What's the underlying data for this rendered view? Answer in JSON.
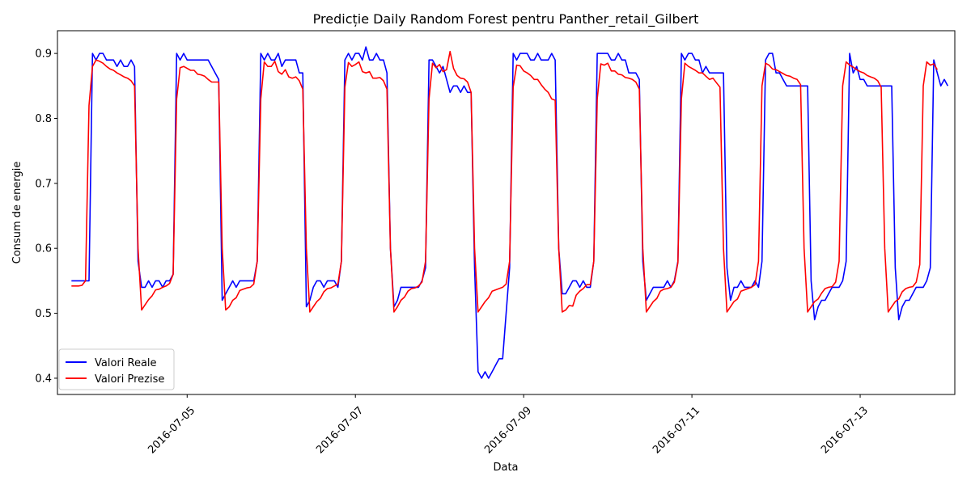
{
  "chart_data": {
    "type": "line",
    "title": "Predicție Daily Random Forest pentru Panther_retail_Gilbert",
    "xlabel": "Data",
    "ylabel": "Consum de energie",
    "x_start": "2016-07-03T15:00",
    "x_step_hours": 1,
    "x_ticks": [
      "2016-07-05",
      "2016-07-07",
      "2016-07-09",
      "2016-07-11",
      "2016-07-13"
    ],
    "xlim": [
      "2016-07-03T11:00",
      "2016-07-14T03:00"
    ],
    "ylim": [
      0.375,
      0.935
    ],
    "y_ticks": [
      0.4,
      0.5,
      0.6,
      0.7,
      0.8,
      0.9
    ],
    "grid": false,
    "legend_position": "lower-left",
    "series": [
      {
        "name": "Valori Reale",
        "color": "#0000ff",
        "values": [
          0.55,
          0.55,
          0.55,
          0.55,
          0.55,
          0.55,
          0.9,
          0.89,
          0.9,
          0.9,
          0.89,
          0.89,
          0.89,
          0.88,
          0.89,
          0.88,
          0.88,
          0.89,
          0.88,
          0.58,
          0.54,
          0.54,
          0.55,
          0.54,
          0.55,
          0.55,
          0.54,
          0.55,
          0.55,
          0.56,
          0.9,
          0.89,
          0.9,
          0.89,
          0.89,
          0.89,
          0.89,
          0.89,
          0.89,
          0.89,
          0.88,
          0.87,
          0.86,
          0.52,
          0.53,
          0.54,
          0.55,
          0.54,
          0.55,
          0.55,
          0.55,
          0.55,
          0.55,
          0.58,
          0.9,
          0.89,
          0.9,
          0.89,
          0.89,
          0.9,
          0.88,
          0.89,
          0.89,
          0.89,
          0.89,
          0.87,
          0.87,
          0.51,
          0.52,
          0.54,
          0.55,
          0.55,
          0.54,
          0.55,
          0.55,
          0.55,
          0.54,
          0.58,
          0.89,
          0.9,
          0.89,
          0.9,
          0.9,
          0.89,
          0.91,
          0.89,
          0.89,
          0.9,
          0.89,
          0.89,
          0.87,
          0.6,
          0.51,
          0.52,
          0.54,
          0.54,
          0.54,
          0.54,
          0.54,
          0.54,
          0.55,
          0.57,
          0.89,
          0.89,
          0.88,
          0.87,
          0.88,
          0.86,
          0.84,
          0.85,
          0.85,
          0.84,
          0.85,
          0.84,
          0.84,
          0.57,
          0.41,
          0.4,
          0.41,
          0.4,
          0.41,
          0.42,
          0.43,
          0.43,
          0.5,
          0.57,
          0.9,
          0.89,
          0.9,
          0.9,
          0.9,
          0.89,
          0.89,
          0.9,
          0.89,
          0.89,
          0.89,
          0.9,
          0.89,
          0.6,
          0.53,
          0.53,
          0.54,
          0.55,
          0.55,
          0.54,
          0.55,
          0.54,
          0.54,
          0.58,
          0.9,
          0.9,
          0.9,
          0.9,
          0.89,
          0.89,
          0.9,
          0.89,
          0.89,
          0.87,
          0.87,
          0.87,
          0.86,
          0.58,
          0.52,
          0.53,
          0.54,
          0.54,
          0.54,
          0.54,
          0.55,
          0.54,
          0.55,
          0.58,
          0.9,
          0.89,
          0.9,
          0.9,
          0.89,
          0.89,
          0.87,
          0.88,
          0.87,
          0.87,
          0.87,
          0.87,
          0.87,
          0.57,
          0.52,
          0.54,
          0.54,
          0.55,
          0.54,
          0.54,
          0.54,
          0.55,
          0.54,
          0.58,
          0.89,
          0.9,
          0.9,
          0.87,
          0.87,
          0.86,
          0.85,
          0.85,
          0.85,
          0.85,
          0.85,
          0.85,
          0.85,
          0.55,
          0.49,
          0.51,
          0.52,
          0.52,
          0.53,
          0.54,
          0.54,
          0.54,
          0.55,
          0.58,
          0.9,
          0.87,
          0.88,
          0.86,
          0.86,
          0.85,
          0.85,
          0.85,
          0.85,
          0.85,
          0.85,
          0.85,
          0.85,
          0.57,
          0.49,
          0.51,
          0.52,
          0.52,
          0.53,
          0.54,
          0.54,
          0.54,
          0.55,
          0.57,
          0.89,
          0.87,
          0.85,
          0.86,
          0.85
        ]
      },
      {
        "name": "Valori Prezise",
        "color": "#ff0000",
        "values": [
          0.542,
          0.542,
          0.542,
          0.543,
          0.55,
          0.82,
          0.88,
          0.89,
          0.888,
          0.885,
          0.88,
          0.876,
          0.874,
          0.87,
          0.867,
          0.864,
          0.862,
          0.858,
          0.85,
          0.6,
          0.505,
          0.513,
          0.521,
          0.527,
          0.536,
          0.537,
          0.54,
          0.542,
          0.546,
          0.56,
          0.83,
          0.878,
          0.88,
          0.877,
          0.874,
          0.874,
          0.868,
          0.867,
          0.865,
          0.86,
          0.856,
          0.856,
          0.856,
          0.6,
          0.505,
          0.51,
          0.52,
          0.524,
          0.535,
          0.537,
          0.539,
          0.54,
          0.545,
          0.58,
          0.83,
          0.887,
          0.88,
          0.88,
          0.888,
          0.872,
          0.868,
          0.875,
          0.864,
          0.862,
          0.864,
          0.858,
          0.845,
          0.6,
          0.502,
          0.51,
          0.518,
          0.523,
          0.533,
          0.538,
          0.539,
          0.542,
          0.545,
          0.58,
          0.848,
          0.886,
          0.88,
          0.883,
          0.887,
          0.872,
          0.87,
          0.872,
          0.862,
          0.862,
          0.863,
          0.858,
          0.845,
          0.6,
          0.502,
          0.51,
          0.52,
          0.525,
          0.534,
          0.538,
          0.539,
          0.542,
          0.548,
          0.58,
          0.83,
          0.885,
          0.878,
          0.883,
          0.872,
          0.875,
          0.903,
          0.877,
          0.866,
          0.862,
          0.861,
          0.856,
          0.84,
          0.6,
          0.502,
          0.51,
          0.518,
          0.524,
          0.534,
          0.536,
          0.538,
          0.54,
          0.545,
          0.58,
          0.848,
          0.882,
          0.881,
          0.873,
          0.87,
          0.866,
          0.86,
          0.86,
          0.852,
          0.845,
          0.84,
          0.83,
          0.828,
          0.6,
          0.502,
          0.505,
          0.512,
          0.511,
          0.528,
          0.534,
          0.538,
          0.544,
          0.544,
          0.58,
          0.83,
          0.884,
          0.882,
          0.885,
          0.873,
          0.873,
          0.868,
          0.867,
          0.863,
          0.862,
          0.86,
          0.856,
          0.845,
          0.6,
          0.502,
          0.51,
          0.518,
          0.523,
          0.534,
          0.537,
          0.538,
          0.54,
          0.548,
          0.578,
          0.83,
          0.885,
          0.88,
          0.877,
          0.874,
          0.87,
          0.87,
          0.865,
          0.86,
          0.862,
          0.855,
          0.848,
          0.6,
          0.502,
          0.51,
          0.518,
          0.522,
          0.534,
          0.536,
          0.538,
          0.54,
          0.544,
          0.58,
          0.85,
          0.885,
          0.882,
          0.876,
          0.875,
          0.872,
          0.869,
          0.866,
          0.865,
          0.862,
          0.86,
          0.852,
          0.6,
          0.502,
          0.51,
          0.518,
          0.522,
          0.531,
          0.538,
          0.54,
          0.541,
          0.548,
          0.58,
          0.85,
          0.887,
          0.882,
          0.879,
          0.875,
          0.872,
          0.87,
          0.866,
          0.864,
          0.862,
          0.858,
          0.848,
          0.6,
          0.502,
          0.51,
          0.518,
          0.522,
          0.533,
          0.538,
          0.54,
          0.541,
          0.548,
          0.575,
          0.85,
          0.887,
          0.882,
          0.884,
          0.875
        ]
      }
    ]
  }
}
